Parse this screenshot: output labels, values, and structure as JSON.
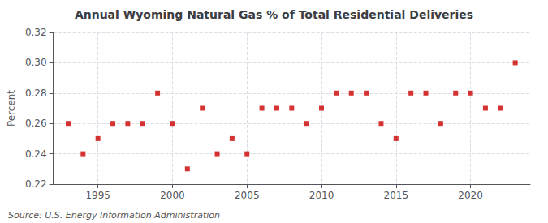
{
  "chart_data": {
    "type": "scatter",
    "title": "Annual Wyoming Natural Gas % of Total Residential Deliveries",
    "ylabel": "Percent",
    "annotations": [
      "Source: U.S. Energy Information Administration"
    ],
    "x": [
      1993,
      1994,
      1995,
      1996,
      1997,
      1998,
      1999,
      2000,
      2001,
      2002,
      2003,
      2004,
      2005,
      2006,
      2007,
      2008,
      2009,
      2010,
      2011,
      2012,
      2013,
      2014,
      2015,
      2016,
      2017,
      2018,
      2019,
      2020,
      2021,
      2022,
      2023
    ],
    "values": [
      0.26,
      0.24,
      0.25,
      0.26,
      0.26,
      0.26,
      0.28,
      0.26,
      0.23,
      0.27,
      0.24,
      0.25,
      0.24,
      0.27,
      0.27,
      0.27,
      0.26,
      0.27,
      0.28,
      0.28,
      0.28,
      0.26,
      0.25,
      0.28,
      0.28,
      0.26,
      0.28,
      0.28,
      0.27,
      0.27,
      0.3
    ],
    "color": "#cc0000",
    "marker": "square",
    "xlim": [
      1992,
      2024
    ],
    "xticks": [
      1995,
      2000,
      2005,
      2010,
      2015,
      2020
    ],
    "ylim": [
      0.22,
      0.32
    ],
    "yticks": [
      0.22,
      0.24,
      0.26,
      0.28,
      {
        "value": 0.3,
        "label": "0.30"
      },
      0.32
    ],
    "grid": true
  }
}
